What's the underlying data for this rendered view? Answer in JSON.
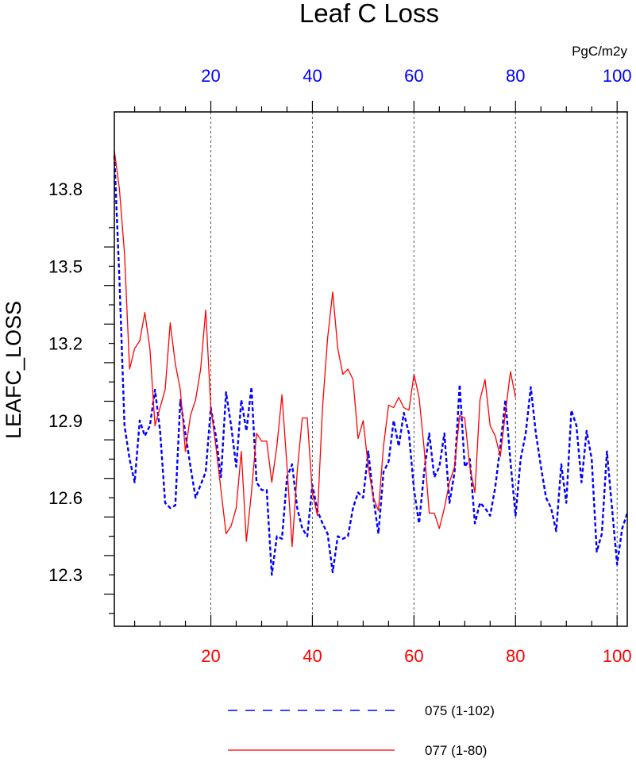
{
  "chart_data": {
    "type": "line",
    "title": "Leaf C Loss",
    "units": "PgC/m2y",
    "ylabel": "LEAFC_LOSS",
    "xlabel": "",
    "xlim": [
      1,
      102
    ],
    "ylim": [
      12.1,
      14.1
    ],
    "yticks": [
      12.3,
      12.6,
      12.9,
      13.2,
      13.5,
      13.8
    ],
    "ytick_labels": [
      "12.3",
      "12.6",
      "12.9",
      "13.2",
      "13.5",
      "13.8"
    ],
    "xticks": [
      20,
      40,
      60,
      80,
      100
    ],
    "bottom_tick_labels": [
      "20",
      "40",
      "60",
      "80",
      "100"
    ],
    "top_tick_labels": [
      "20",
      "40",
      "60",
      "80",
      "100"
    ],
    "grid": "vertical dashed at major x ticks",
    "legend_position": "bottom",
    "series": [
      {
        "name": "075 (1-102)",
        "color": "#0000ff",
        "style": "dashed",
        "x_start": 1,
        "values": [
          13.93,
          13.45,
          12.88,
          12.75,
          12.66,
          12.9,
          12.84,
          12.88,
          13.02,
          12.86,
          12.58,
          12.56,
          12.57,
          12.98,
          12.85,
          12.72,
          12.6,
          12.65,
          12.7,
          12.95,
          12.84,
          12.68,
          13.01,
          12.88,
          12.72,
          12.98,
          12.86,
          13.03,
          12.66,
          12.63,
          12.63,
          12.3,
          12.45,
          12.44,
          12.68,
          12.73,
          12.56,
          12.48,
          12.45,
          12.65,
          12.55,
          12.5,
          12.46,
          12.31,
          12.45,
          12.44,
          12.45,
          12.56,
          12.62,
          12.6,
          12.78,
          12.6,
          12.46,
          12.7,
          12.74,
          12.9,
          12.8,
          12.93,
          12.85,
          12.63,
          12.5,
          12.7,
          12.85,
          12.68,
          12.72,
          12.85,
          12.58,
          12.7,
          13.04,
          12.72,
          12.75,
          12.5,
          12.58,
          12.56,
          12.53,
          12.64,
          12.8,
          12.98,
          12.74,
          12.53,
          12.75,
          12.85,
          13.03,
          12.85,
          12.72,
          12.6,
          12.56,
          12.47,
          12.73,
          12.58,
          12.94,
          12.88,
          12.66,
          12.86,
          12.75,
          12.39,
          12.46,
          12.78,
          12.56,
          12.34,
          12.48,
          12.54
        ]
      },
      {
        "name": "077 (1-80)",
        "color": "#ff0000",
        "style": "solid",
        "x_start": 1,
        "values": [
          13.95,
          13.8,
          13.55,
          13.1,
          13.18,
          13.21,
          13.32,
          13.18,
          12.88,
          12.95,
          13.02,
          13.28,
          13.12,
          13.02,
          12.78,
          12.92,
          12.98,
          13.1,
          13.33,
          12.95,
          12.8,
          12.63,
          12.46,
          12.49,
          12.56,
          12.78,
          12.43,
          12.62,
          12.85,
          12.82,
          12.82,
          12.66,
          12.8,
          13.0,
          12.72,
          12.41,
          12.7,
          12.91,
          12.91,
          12.62,
          12.53,
          12.95,
          13.22,
          13.4,
          13.18,
          13.08,
          13.1,
          13.06,
          12.83,
          12.9,
          12.72,
          12.6,
          12.55,
          12.8,
          12.96,
          12.95,
          12.99,
          12.95,
          12.94,
          13.08,
          12.99,
          12.79,
          12.54,
          12.54,
          12.48,
          12.56,
          12.66,
          12.72,
          12.92,
          12.91,
          12.72,
          12.62,
          12.98,
          13.06,
          12.88,
          12.84,
          12.76,
          12.93,
          13.09,
          12.99
        ]
      }
    ]
  }
}
